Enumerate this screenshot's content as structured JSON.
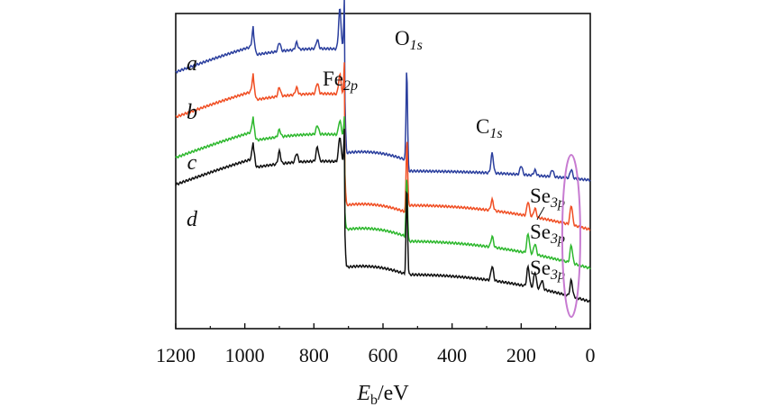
{
  "chart_data": {
    "type": "line",
    "xlabel_main": "E",
    "xlabel_sub": "b",
    "xlabel_unit": "/eV",
    "x_reversed": true,
    "xlim": [
      1200,
      0
    ],
    "xticks": [
      1200,
      1000,
      800,
      600,
      400,
      200,
      0
    ],
    "y_ticks_shown": false,
    "series": [
      {
        "name": "a",
        "color": "#2b3f9e",
        "offset": 0,
        "peaks": [
          {
            "x": 975,
            "h": 22
          },
          {
            "x": 900,
            "h": 10
          },
          {
            "x": 850,
            "h": 8
          },
          {
            "x": 790,
            "h": 10
          },
          {
            "x": 725,
            "h": 45
          },
          {
            "x": 711,
            "h": 65
          },
          {
            "x": 531,
            "h": 110
          },
          {
            "x": 284,
            "h": 22
          },
          {
            "x": 200,
            "h": 10
          },
          {
            "x": 160,
            "h": 6
          },
          {
            "x": 110,
            "h": 8
          },
          {
            "x": 55,
            "h": 10
          }
        ]
      },
      {
        "name": "b",
        "color": "#f04e23",
        "offset": 1,
        "peaks": [
          {
            "x": 975,
            "h": 20
          },
          {
            "x": 900,
            "h": 10
          },
          {
            "x": 850,
            "h": 8
          },
          {
            "x": 790,
            "h": 12
          },
          {
            "x": 725,
            "h": 22
          },
          {
            "x": 711,
            "h": 40
          },
          {
            "x": 531,
            "h": 80
          },
          {
            "x": 284,
            "h": 12
          },
          {
            "x": 180,
            "h": 16
          },
          {
            "x": 160,
            "h": 10
          },
          {
            "x": 55,
            "h": 22
          }
        ]
      },
      {
        "name": "c",
        "color": "#2eb82e",
        "offset": 2,
        "peaks": [
          {
            "x": 975,
            "h": 18
          },
          {
            "x": 900,
            "h": 8
          },
          {
            "x": 790,
            "h": 10
          },
          {
            "x": 725,
            "h": 16
          },
          {
            "x": 711,
            "h": 22
          },
          {
            "x": 531,
            "h": 70
          },
          {
            "x": 284,
            "h": 12
          },
          {
            "x": 180,
            "h": 22
          },
          {
            "x": 160,
            "h": 12
          },
          {
            "x": 55,
            "h": 20
          }
        ]
      },
      {
        "name": "d",
        "color": "#111111",
        "offset": 3,
        "peaks": [
          {
            "x": 975,
            "h": 20
          },
          {
            "x": 900,
            "h": 14
          },
          {
            "x": 850,
            "h": 10
          },
          {
            "x": 790,
            "h": 16
          },
          {
            "x": 725,
            "h": 28
          },
          {
            "x": 711,
            "h": 40
          },
          {
            "x": 531,
            "h": 100
          },
          {
            "x": 284,
            "h": 16
          },
          {
            "x": 180,
            "h": 22
          },
          {
            "x": 160,
            "h": 18
          },
          {
            "x": 140,
            "h": 10
          },
          {
            "x": 55,
            "h": 18
          }
        ]
      }
    ],
    "annotations": [
      {
        "main": "Fe",
        "sub": "2p",
        "x": 711
      },
      {
        "main": "O",
        "sub": "1s",
        "x": 531
      },
      {
        "main": "C",
        "sub": "1s",
        "x": 284
      },
      {
        "main": "Se",
        "sub": "3p",
        "x": 160
      },
      {
        "main": "Se",
        "sub": "3p",
        "x": 160
      },
      {
        "main": "Se",
        "sub": "3p",
        "x": 160
      }
    ],
    "highlight_region": {
      "x_from": 70,
      "x_to": 40,
      "color": "#c77bd1"
    }
  }
}
